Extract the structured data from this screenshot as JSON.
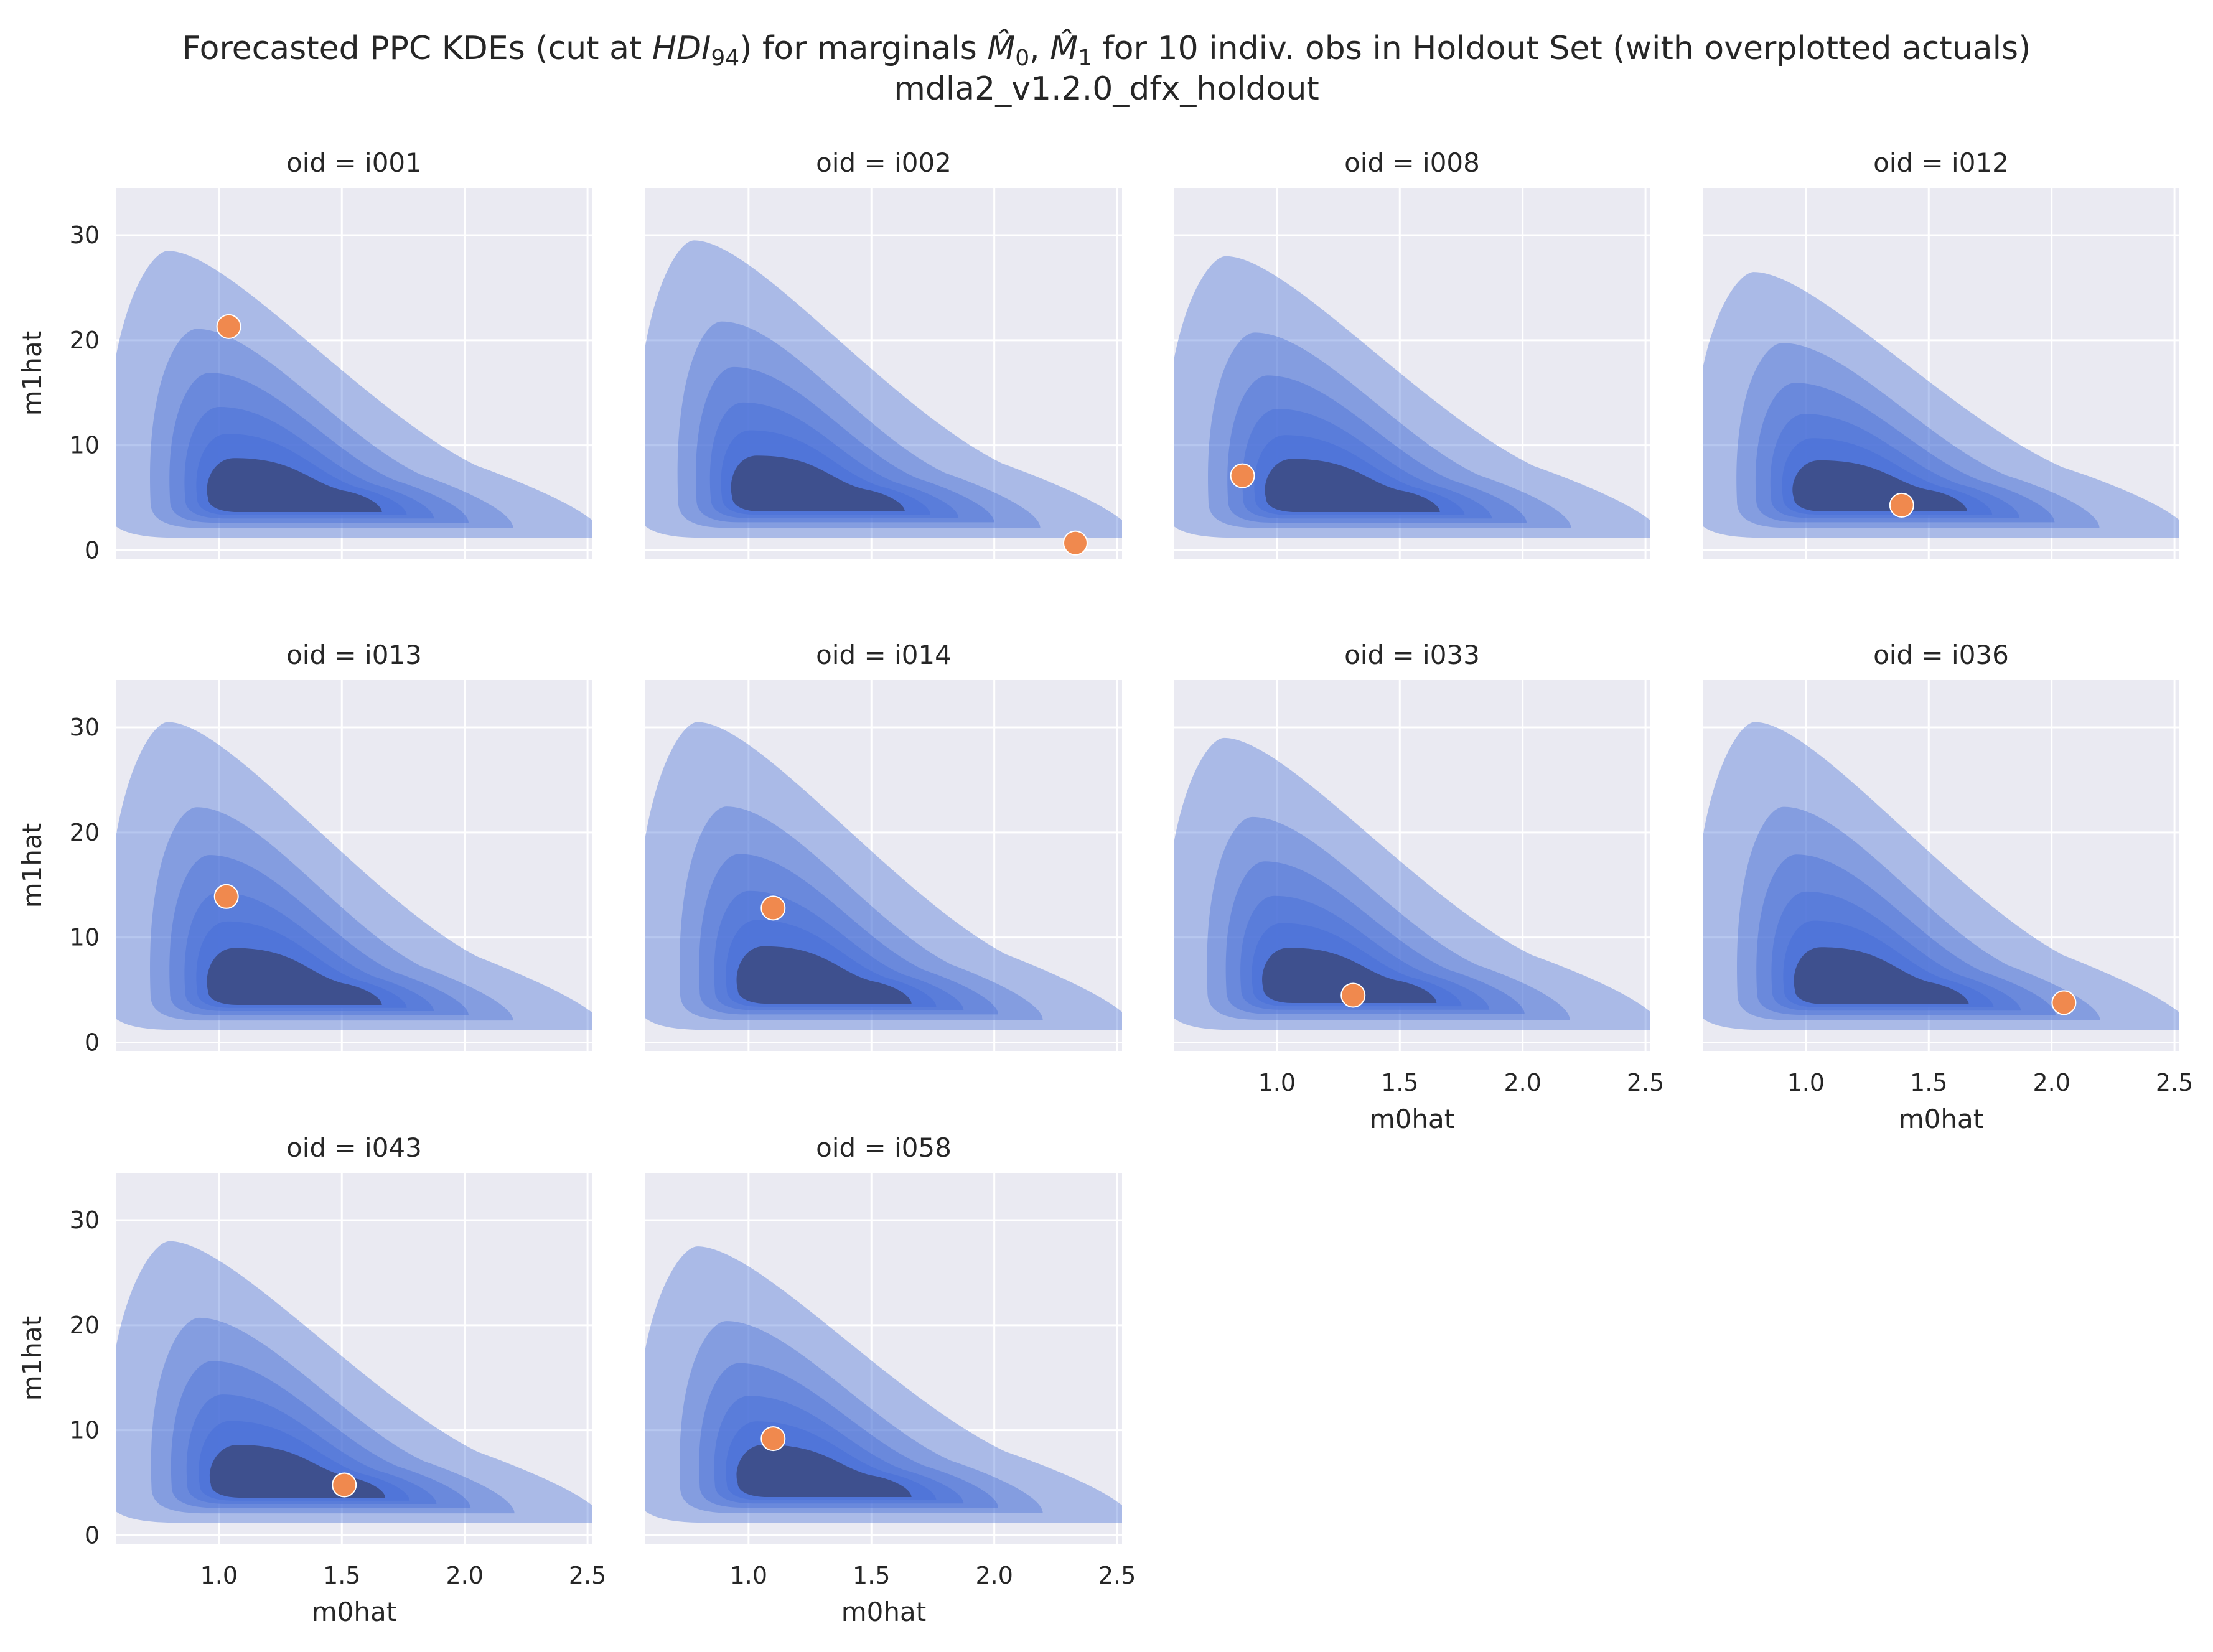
{
  "figure": {
    "title_prefix": "Forecasted PPC KDEs (cut at ",
    "title_hdi": "HDI",
    "title_hdi_sub": "94",
    "title_mid": ") for marginals ",
    "title_m0": "M̂",
    "title_m0_sub": "0",
    "title_sep": ", ",
    "title_m1": "M̂",
    "title_m1_sub": "1",
    "title_suffix": " for 10 indiv. obs in Holdout Set (with overplotted actuals)",
    "subtitle": "mdla2_v1.2.0_dfx_holdout"
  },
  "colors": {
    "background": "#eaeaf2",
    "grid": "#ffffff",
    "kde": "#4c72d8",
    "kde_dark": "#3b4a80",
    "actual": "#f0894e"
  },
  "chart_data": {
    "type": "kde-facet-grid",
    "facet_label": "oid",
    "xlabel": "m0hat",
    "ylabel": "m1hat",
    "xlim": [
      0.58,
      2.52
    ],
    "ylim": [
      -0.8,
      34.5
    ],
    "xticks": [
      1.0,
      1.5,
      2.0,
      2.5
    ],
    "xtick_labels": [
      "1.0",
      "1.5",
      "2.0",
      "2.5"
    ],
    "yticks": [
      0,
      10,
      20,
      30
    ],
    "ytick_labels": [
      "0",
      "10",
      "20",
      "30"
    ],
    "grid": true,
    "layout": {
      "rows": 3,
      "cols": 4
    },
    "panels": [
      {
        "oid": "i001",
        "title": "oid = i001",
        "actual": {
          "m0hat": 1.04,
          "m1hat": 21.3
        },
        "kde": {
          "cx": 1.26,
          "cy": 5.3,
          "top": 28.5
        }
      },
      {
        "oid": "i002",
        "title": "oid = i002",
        "actual": {
          "m0hat": 2.33,
          "m1hat": 0.7
        },
        "kde": {
          "cx": 1.22,
          "cy": 5.4,
          "top": 29.5
        }
      },
      {
        "oid": "i008",
        "title": "oid = i008",
        "actual": {
          "m0hat": 0.86,
          "m1hat": 7.1
        },
        "kde": {
          "cx": 1.26,
          "cy": 5.3,
          "top": 28.0
        }
      },
      {
        "oid": "i012",
        "title": "oid = i012",
        "actual": {
          "m0hat": 1.39,
          "m1hat": 4.3
        },
        "kde": {
          "cx": 1.25,
          "cy": 5.4,
          "top": 26.5
        }
      },
      {
        "oid": "i013",
        "title": "oid = i013",
        "actual": {
          "m0hat": 1.03,
          "m1hat": 13.9
        },
        "kde": {
          "cx": 1.26,
          "cy": 5.2,
          "top": 30.5
        }
      },
      {
        "oid": "i014",
        "title": "oid = i014",
        "actual": {
          "m0hat": 1.1,
          "m1hat": 12.8
        },
        "kde": {
          "cx": 1.26,
          "cy": 5.4,
          "top": 30.5
        }
      },
      {
        "oid": "i033",
        "title": "oid = i033",
        "actual": {
          "m0hat": 1.31,
          "m1hat": 4.5
        },
        "kde": {
          "cx": 1.24,
          "cy": 5.5,
          "top": 29.0
        }
      },
      {
        "oid": "i036",
        "title": "oid = i036",
        "actual": {
          "m0hat": 2.05,
          "m1hat": 3.8
        },
        "kde": {
          "cx": 1.26,
          "cy": 5.3,
          "top": 30.5
        }
      },
      {
        "oid": "i043",
        "title": "oid = i043",
        "actual": {
          "m0hat": 1.51,
          "m1hat": 4.8
        },
        "kde": {
          "cx": 1.28,
          "cy": 5.2,
          "top": 28.0
        }
      },
      {
        "oid": "i058",
        "title": "oid = i058",
        "actual": {
          "m0hat": 1.1,
          "m1hat": 9.2
        },
        "kde": {
          "cx": 1.26,
          "cy": 5.3,
          "top": 27.5
        }
      }
    ]
  }
}
